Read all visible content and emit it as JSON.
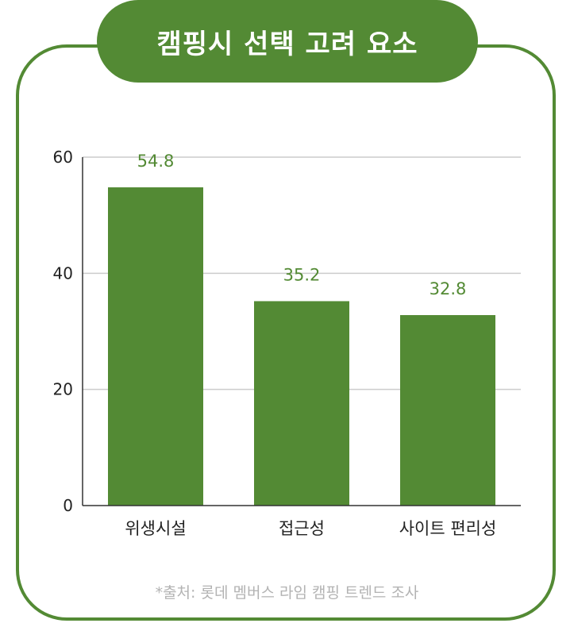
{
  "chart_data": {
    "type": "bar",
    "title": "캠핑시 선택 고려 요소",
    "categories": [
      "위생시설",
      "접근성",
      "사이트 편리성"
    ],
    "values": [
      54.8,
      35.2,
      32.8
    ],
    "value_labels": [
      "54.8",
      "35.2",
      "32.8"
    ],
    "y_ticks": [
      0,
      20,
      40,
      60
    ],
    "ylim": [
      0,
      60
    ],
    "grid": true,
    "legend": "none",
    "source": "*출처: 롯데 멤버스 라임 캠핑 트렌드 조사"
  },
  "colors": {
    "bar": "#538a34",
    "value_label": "#538a34",
    "axis": "#333333",
    "grid": "#cccccc",
    "text": "#222222"
  }
}
